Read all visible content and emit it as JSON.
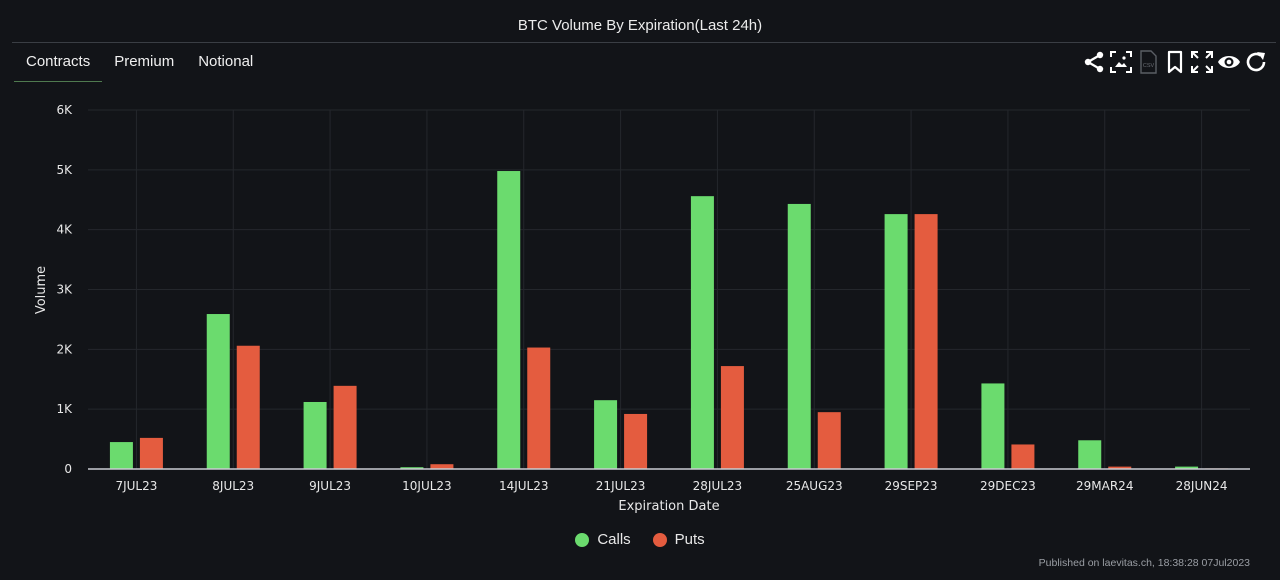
{
  "header": {
    "title": "BTC Volume By Expiration(Last 24h)"
  },
  "tabs": [
    {
      "label": "Contracts",
      "active": true
    },
    {
      "label": "Premium",
      "active": false
    },
    {
      "label": "Notional",
      "active": false
    }
  ],
  "toolbar": {
    "icons": [
      "share-icon",
      "image-download-icon",
      "csv-download-icon",
      "bookmark-icon",
      "fullscreen-icon",
      "eye-icon",
      "refresh-icon"
    ]
  },
  "colors": {
    "calls": "#6bdb6e",
    "puts": "#e45c3f",
    "background": "#121418",
    "grid": "#24272c",
    "axis": "#c9ccd2"
  },
  "footer": {
    "published": "Published on laevitas.ch, 18:38:28 07Jul2023"
  },
  "chart_data": {
    "type": "bar",
    "title": "BTC Volume By Expiration(Last 24h)",
    "xlabel": "Expiration Date",
    "ylabel": "Volume",
    "ylim": [
      0,
      6000
    ],
    "yticks": [
      0,
      1000,
      2000,
      3000,
      4000,
      5000,
      6000
    ],
    "ytick_labels": [
      "0",
      "1K",
      "2K",
      "3K",
      "4K",
      "5K",
      "6K"
    ],
    "grid": true,
    "legend_position": "bottom-center",
    "categories": [
      "7JUL23",
      "8JUL23",
      "9JUL23",
      "10JUL23",
      "14JUL23",
      "21JUL23",
      "28JUL23",
      "25AUG23",
      "29SEP23",
      "29DEC23",
      "29MAR24",
      "28JUN24"
    ],
    "series": [
      {
        "name": "Calls",
        "color": "#6bdb6e",
        "values": [
          450,
          2590,
          1120,
          30,
          4980,
          1150,
          4560,
          4430,
          4260,
          1430,
          480,
          40
        ]
      },
      {
        "name": "Puts",
        "color": "#e45c3f",
        "values": [
          520,
          2060,
          1390,
          80,
          2030,
          920,
          1720,
          950,
          4260,
          410,
          40,
          10
        ]
      }
    ]
  }
}
